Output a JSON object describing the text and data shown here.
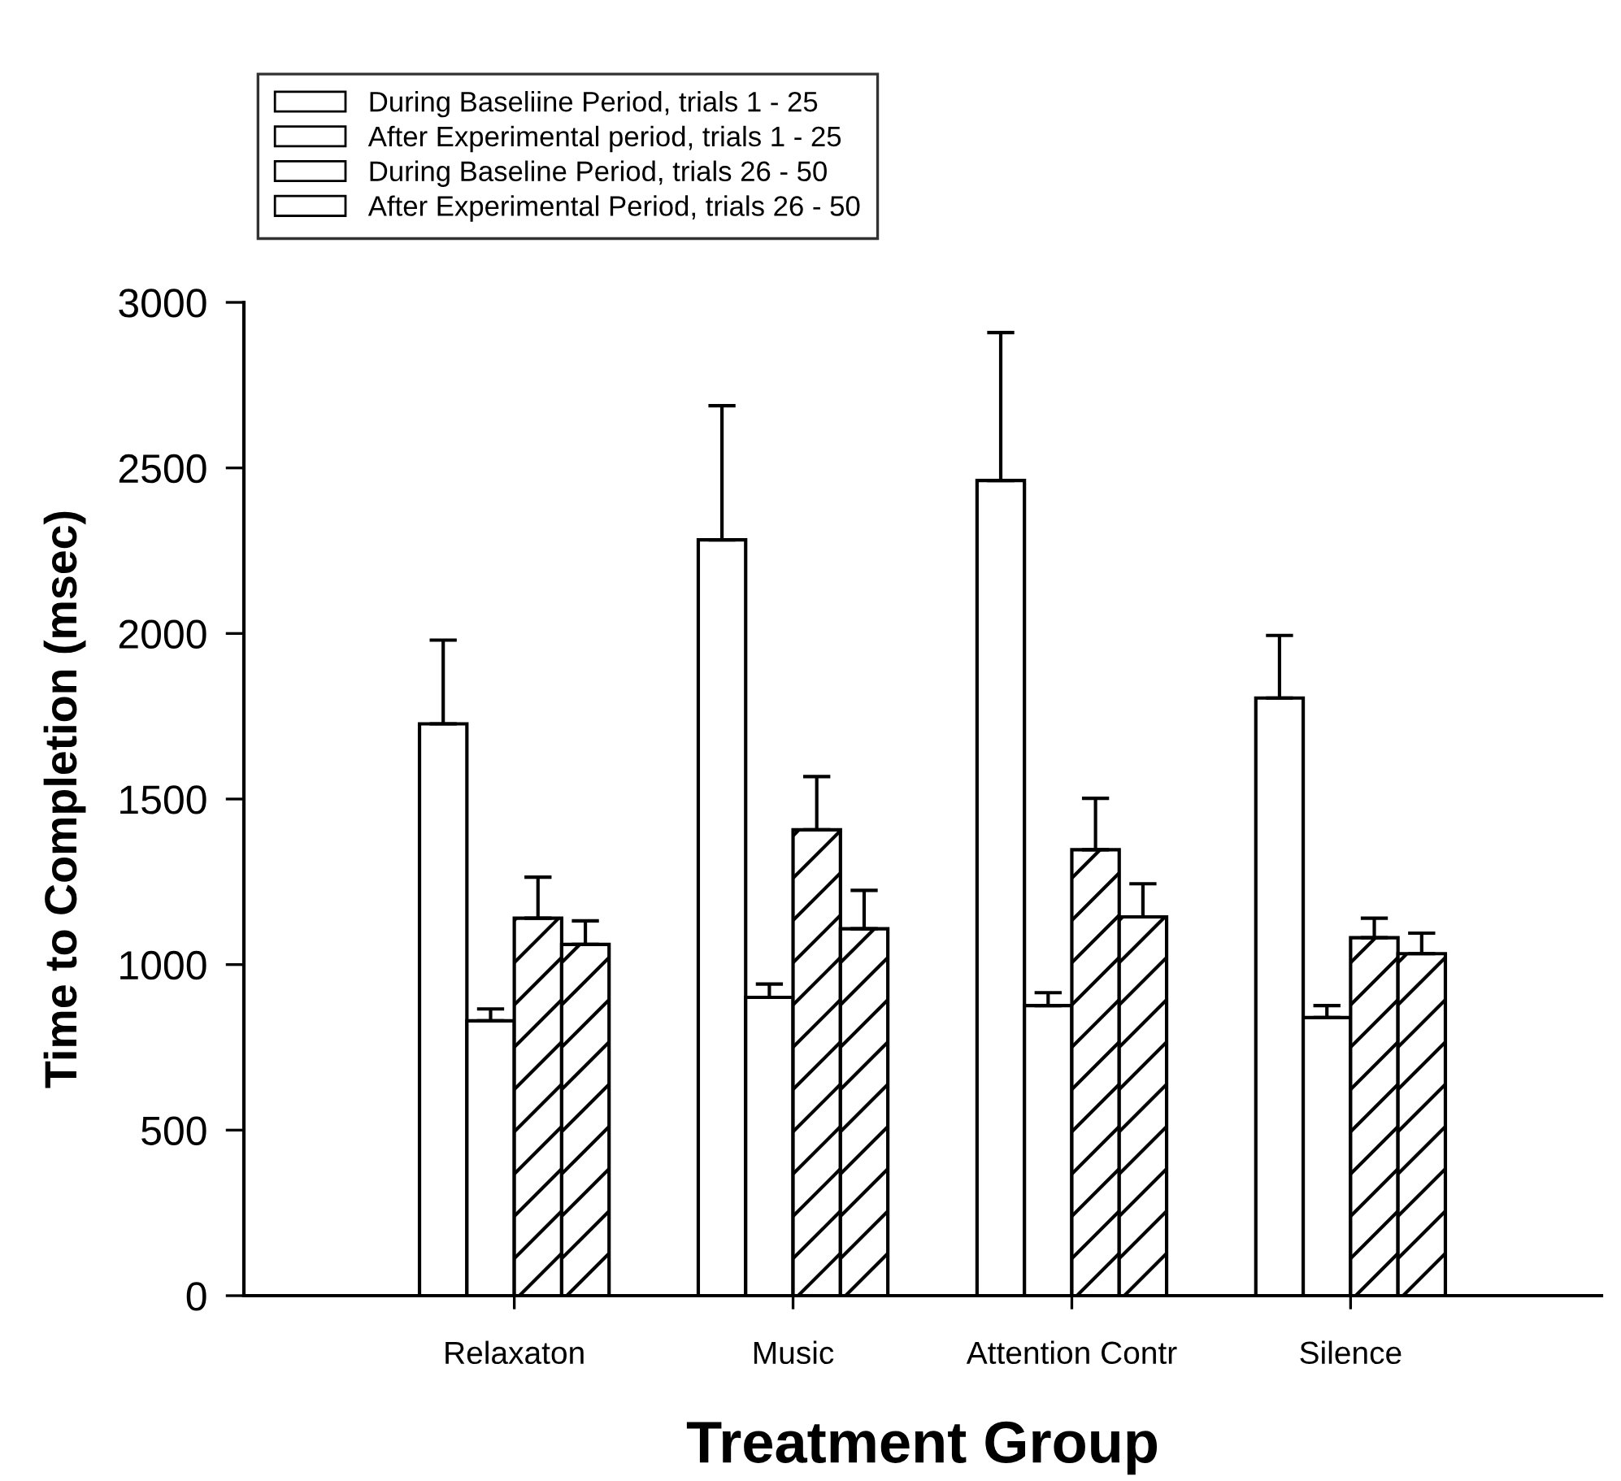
{
  "chart_data": {
    "type": "bar",
    "categories": [
      "Relaxaton",
      "Music",
      "Attention Contr",
      "Silence"
    ],
    "series": [
      {
        "name": "During Baseliine Period, trials 1 - 25",
        "color": "#ffffff",
        "values": [
          1727,
          2283,
          2462,
          1805
        ],
        "errors": [
          [
            1727,
            1980
          ],
          [
            2283,
            2688
          ],
          [
            2462,
            2909
          ],
          [
            1805,
            1994
          ]
        ]
      },
      {
        "name": "After Experimental period, trials 1 - 25",
        "color": "#ffffff",
        "values": [
          830,
          901,
          876,
          840
        ],
        "errors": [
          [
            830,
            866
          ],
          [
            901,
            941
          ],
          [
            876,
            915
          ],
          [
            840,
            876
          ]
        ]
      },
      {
        "name": "During Baseline Period, trials 26 - 50",
        "color": "#ffffff",
        "values": [
          1140,
          1407,
          1347,
          1081
        ],
        "errors": [
          [
            1140,
            1264
          ],
          [
            1407,
            1568
          ],
          [
            1347,
            1502
          ],
          [
            1081,
            1140
          ]
        ]
      },
      {
        "name": "After Experimental Period, trials 26 - 50",
        "color": "#ffffff",
        "values": [
          1061,
          1108,
          1144,
          1033
        ],
        "errors": [
          [
            1061,
            1132
          ],
          [
            1108,
            1224
          ],
          [
            1144,
            1244
          ],
          [
            1033,
            1095
          ]
        ]
      }
    ],
    "xlabel": "Treatment Group",
    "ylabel": "Time to Completion (msec)",
    "ylim": [
      0,
      3000
    ],
    "yticks": [
      0,
      500,
      1000,
      1500,
      2000,
      2500,
      3000
    ],
    "legend": "top left",
    "grid": false
  }
}
